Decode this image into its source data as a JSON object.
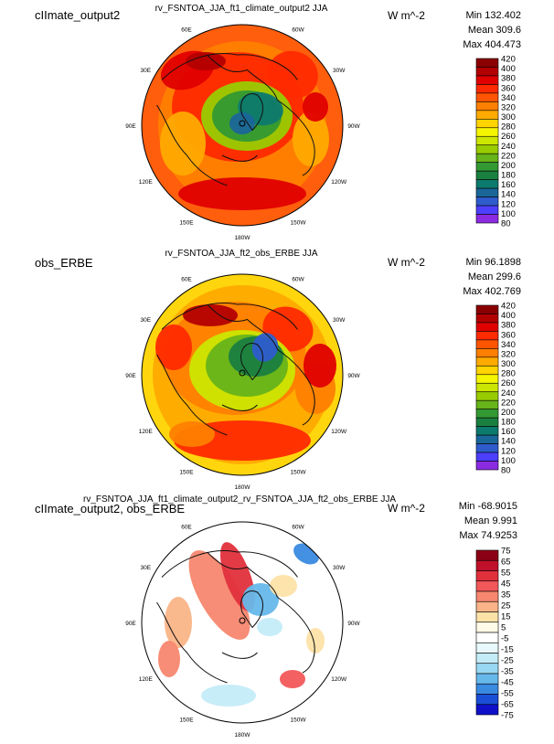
{
  "panels": [
    {
      "case_name": "cIImate_output2",
      "title": "rv_FSNTOA_JJA_ft1_climate_output2  JJA",
      "units": "W m^-2",
      "stats": {
        "min": "Min 132.402",
        "mean": "Mean 309.6",
        "max": "Max 404.473"
      },
      "lon_labels": [
        "30E",
        "30W",
        "60E",
        "60W",
        "90E",
        "90W",
        "120E",
        "120W",
        "150E",
        "150W",
        "180W"
      ],
      "colorbar": {
        "labels": [
          "420",
          "400",
          "380",
          "360",
          "340",
          "320",
          "300",
          "280",
          "260",
          "240",
          "220",
          "200",
          "180",
          "160",
          "140",
          "120",
          "100",
          "80"
        ],
        "colors": [
          "#8b0000",
          "#b30000",
          "#e00000",
          "#ff2a00",
          "#ff5500",
          "#ff7f00",
          "#ffaa00",
          "#ffd400",
          "#f5f500",
          "#cce600",
          "#99cc00",
          "#66b31a",
          "#339933",
          "#1a8040",
          "#0d7a6e",
          "#1a6699",
          "#2e5ccc",
          "#4d3fff",
          "#8a2be2"
        ]
      }
    },
    {
      "case_name": "obs_ERBE",
      "title": "rv_FSNTOA_JJA_ft2_obs_ERBE  JJA",
      "units": "W m^-2",
      "stats": {
        "min": "Min 96.1898",
        "mean": "Mean 299.6",
        "max": "Max 402.769"
      },
      "lon_labels": [
        "30E",
        "30W",
        "60E",
        "60W",
        "90E",
        "90W",
        "120E",
        "120W",
        "150E",
        "150W",
        "180W"
      ],
      "colorbar": {
        "labels": [
          "420",
          "400",
          "380",
          "360",
          "340",
          "320",
          "300",
          "280",
          "260",
          "240",
          "220",
          "200",
          "180",
          "160",
          "140",
          "120",
          "100",
          "80"
        ],
        "colors": [
          "#8b0000",
          "#b30000",
          "#e00000",
          "#ff2a00",
          "#ff5500",
          "#ff7f00",
          "#ffaa00",
          "#ffd400",
          "#f5f500",
          "#cce600",
          "#99cc00",
          "#66b31a",
          "#339933",
          "#1a8040",
          "#0d7a6e",
          "#1a6699",
          "#2e5ccc",
          "#4d3fff",
          "#8a2be2"
        ]
      }
    },
    {
      "case_name": "cIImate_output2, obs_ERBE",
      "title": "rv_FSNTOA_JJA_ft1_climate_output2_rv_FSNTOA_JJA_ft2_obs_ERBE  JJA",
      "units": "W m^-2",
      "stats": {
        "min": "Min -68.9015",
        "mean": "Mean 9.991",
        "max": "Max 74.9253"
      },
      "lon_labels": [
        "30E",
        "30W",
        "60E",
        "60W",
        "90E",
        "90W",
        "120E",
        "120W",
        "150E",
        "150W",
        "180W"
      ],
      "colorbar": {
        "labels": [
          "75",
          "65",
          "55",
          "45",
          "35",
          "25",
          "15",
          "5",
          "-5",
          "-15",
          "-25",
          "-35",
          "-45",
          "-55",
          "-65",
          "-75"
        ],
        "colors": [
          "#8b0015",
          "#c0102a",
          "#e0303c",
          "#f2585a",
          "#f7876f",
          "#fab487",
          "#fde2a8",
          "#fffbe6",
          "#ffffff",
          "#e8f8fc",
          "#c4ecf8",
          "#99d8f2",
          "#66b8ea",
          "#3a8ae0",
          "#1a4ed6",
          "#0f10c8"
        ]
      }
    }
  ],
  "chart_data": [
    {
      "type": "heatmap",
      "projection": "north-polar stereographic",
      "title": "rv_FSNTOA_JJA_ft1_climate_output2  JJA",
      "case": "cIImate_output2",
      "units": "W m^-2",
      "min": 132.402,
      "mean": 309.6,
      "max": 404.473,
      "levels": [
        80,
        100,
        120,
        140,
        160,
        180,
        200,
        220,
        240,
        260,
        280,
        300,
        320,
        340,
        360,
        380,
        400,
        420
      ],
      "lon_labels": [
        "30E",
        "30W",
        "60E",
        "60W",
        "90E",
        "90W",
        "120E",
        "120W",
        "150E",
        "150W",
        "180W"
      ]
    },
    {
      "type": "heatmap",
      "projection": "north-polar stereographic",
      "title": "rv_FSNTOA_JJA_ft2_obs_ERBE  JJA",
      "case": "obs_ERBE",
      "units": "W m^-2",
      "min": 96.1898,
      "mean": 299.6,
      "max": 402.769,
      "levels": [
        80,
        100,
        120,
        140,
        160,
        180,
        200,
        220,
        240,
        260,
        280,
        300,
        320,
        340,
        360,
        380,
        400,
        420
      ],
      "lon_labels": [
        "30E",
        "30W",
        "60E",
        "60W",
        "90E",
        "90W",
        "120E",
        "120W",
        "150E",
        "150W",
        "180W"
      ]
    },
    {
      "type": "heatmap",
      "projection": "north-polar stereographic",
      "title": "rv_FSNTOA_JJA_ft1_climate_output2_rv_FSNTOA_JJA_ft2_obs_ERBE  JJA",
      "case": "cIImate_output2, obs_ERBE",
      "units": "W m^-2",
      "min": -68.9015,
      "mean": 9.991,
      "max": 74.9253,
      "levels": [
        -75,
        -65,
        -55,
        -45,
        -35,
        -25,
        -15,
        -5,
        5,
        15,
        25,
        35,
        45,
        55,
        65,
        75
      ],
      "lon_labels": [
        "30E",
        "30W",
        "60E",
        "60W",
        "90E",
        "90W",
        "120E",
        "120W",
        "150E",
        "150W",
        "180W"
      ]
    }
  ]
}
